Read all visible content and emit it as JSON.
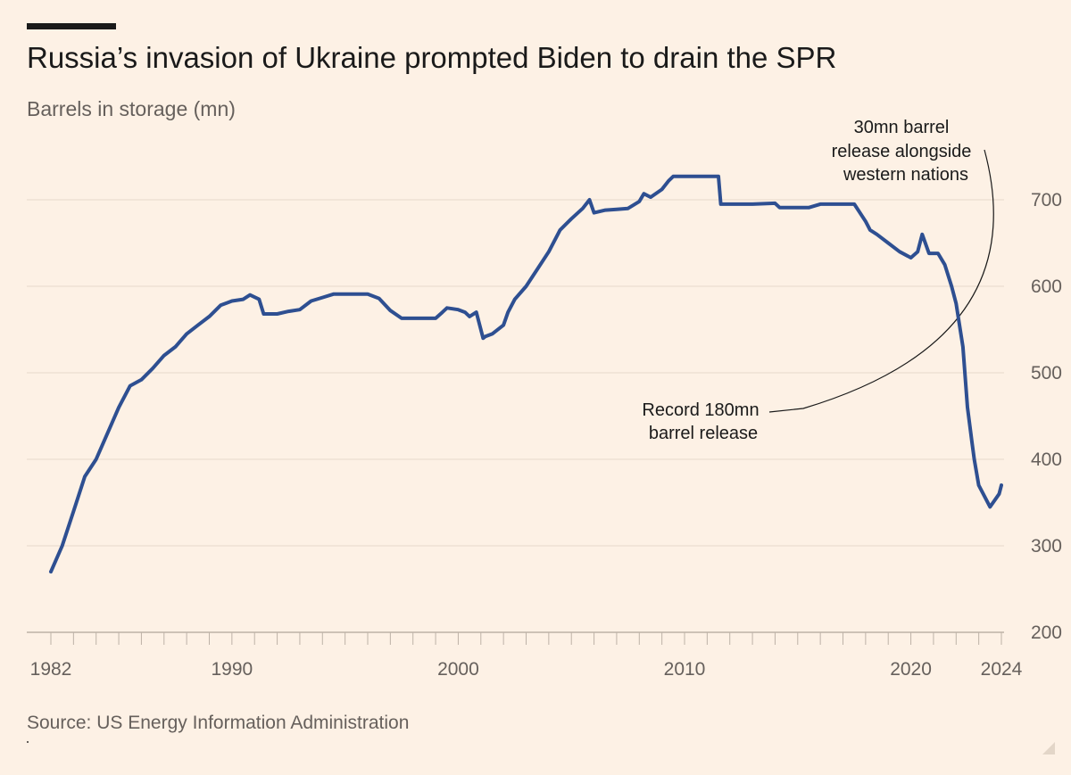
{
  "chart_data": {
    "type": "line",
    "title": "Russia’s invasion of Ukraine prompted Biden to drain the SPR",
    "subtitle": "Barrels in storage (mn)",
    "source": "Source: US Energy Information Administration",
    "xlabel": "",
    "ylabel": "Barrels in storage (mn)",
    "xlim": [
      1982,
      2024
    ],
    "ylim": [
      200,
      750
    ],
    "y_ticks": [
      700,
      600,
      500,
      400,
      300,
      200
    ],
    "x_tick_labels": [
      {
        "year": 1982,
        "label": "1982"
      },
      {
        "year": 1990,
        "label": "1990"
      },
      {
        "year": 2000,
        "label": "2000"
      },
      {
        "year": 2010,
        "label": "2010"
      },
      {
        "year": 2020,
        "label": "2020"
      },
      {
        "year": 2024,
        "label": "2024"
      }
    ],
    "grid": true,
    "line_color": "#2e4f91",
    "series": [
      {
        "name": "Barrels in storage (mn)",
        "x": [
          1982.0,
          1982.5,
          1983.0,
          1983.5,
          1984.0,
          1984.5,
          1985.0,
          1985.5,
          1986.0,
          1986.5,
          1987.0,
          1987.5,
          1988.0,
          1988.5,
          1989.0,
          1989.5,
          1990.0,
          1990.5,
          1990.8,
          1991.2,
          1991.4,
          1992.0,
          1992.5,
          1993.0,
          1993.5,
          1994.0,
          1994.5,
          1995.0,
          1995.5,
          1996.0,
          1996.5,
          1997.0,
          1997.5,
          1998.0,
          1999.0,
          1999.3,
          1999.5,
          2000.0,
          2000.3,
          2000.5,
          2000.8,
          2001.1,
          2001.2,
          2001.5,
          2002.0,
          2002.2,
          2002.5,
          2003.0,
          2003.5,
          2004.0,
          2004.5,
          2005.0,
          2005.5,
          2005.8,
          2006.0,
          2006.5,
          2007.0,
          2007.5,
          2008.0,
          2008.2,
          2008.5,
          2009.0,
          2009.3,
          2009.5,
          2010.0,
          2011.0,
          2011.5,
          2011.6,
          2012.0,
          2013.0,
          2014.0,
          2014.2,
          2015.0,
          2015.5,
          2016.0,
          2017.0,
          2017.2,
          2017.5,
          2018.0,
          2018.2,
          2018.5,
          2019.0,
          2019.5,
          2020.0,
          2020.3,
          2020.5,
          2020.8,
          2021.2,
          2021.5,
          2021.8,
          2022.0,
          2022.3,
          2022.5,
          2022.7,
          2022.8,
          2023.0,
          2023.5,
          2023.9,
          2024.0
        ],
        "values": [
          270,
          300,
          340,
          380,
          400,
          430,
          460,
          485,
          492,
          505,
          520,
          530,
          545,
          555,
          565,
          578,
          583,
          585,
          590,
          585,
          568,
          568,
          571,
          573,
          583,
          587,
          591,
          591,
          591,
          591,
          586,
          572,
          563,
          563,
          563,
          570,
          575,
          573,
          570,
          565,
          570,
          540,
          542,
          545,
          555,
          570,
          585,
          600,
          620,
          640,
          665,
          678,
          690,
          700,
          685,
          688,
          689,
          690,
          698,
          707,
          703,
          712,
          722,
          727,
          727,
          727,
          727,
          695,
          695,
          695,
          696,
          691,
          691,
          691,
          695,
          695,
          695,
          695,
          675,
          665,
          660,
          650,
          640,
          633,
          640,
          660,
          638,
          638,
          625,
          600,
          580,
          530,
          460,
          420,
          400,
          370,
          345,
          360,
          370
        ]
      }
    ],
    "annotations": [
      {
        "lines": [
          "30mn barrel",
          "release alongside",
          "western nations"
        ],
        "year": 2021.8,
        "value": 590
      },
      {
        "lines": [
          "Record 180mn",
          "barrel release"
        ],
        "year": 2022.3,
        "value": 570
      }
    ]
  }
}
